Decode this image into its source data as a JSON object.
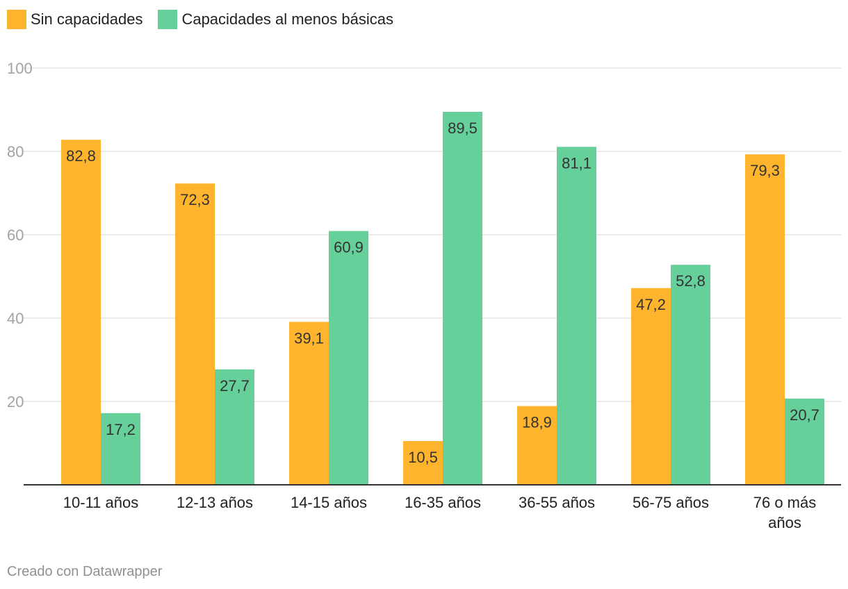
{
  "chart_data": {
    "type": "bar",
    "categories": [
      "10-11 años",
      "12-13 años",
      "14-15 años",
      "16-35 años",
      "36-55 años",
      "56-75 años",
      "76 o más años"
    ],
    "category_lines": [
      [
        "10-11 años"
      ],
      [
        "12-13 años"
      ],
      [
        "14-15 años"
      ],
      [
        "16-35 años"
      ],
      [
        "36-55 años"
      ],
      [
        "56-75 años"
      ],
      [
        "76 o más",
        "años"
      ]
    ],
    "series": [
      {
        "name": "Sin capacidades",
        "color": "#FFB42D",
        "values": [
          82.8,
          72.3,
          39.1,
          10.5,
          18.9,
          47.2,
          79.3
        ],
        "labels": [
          "82,8",
          "72,3",
          "39,1",
          "10,5",
          "18,9",
          "47,2",
          "79,3"
        ]
      },
      {
        "name": "Capacidades al menos básicas",
        "color": "#66D09B",
        "values": [
          17.2,
          27.7,
          60.9,
          89.5,
          81.1,
          52.8,
          20.7
        ],
        "labels": [
          "17,2",
          "27,7",
          "60,9",
          "89,5",
          "81,1",
          "52,8",
          "20,7"
        ]
      }
    ],
    "yticks": [
      20,
      40,
      60,
      80,
      100
    ],
    "ylim": [
      0,
      100
    ],
    "legend_position": "top-left",
    "grid": true
  },
  "legend": {
    "series0_label": "Sin capacidades",
    "series1_label": "Capacidades al menos básicas"
  },
  "footer": {
    "credit": "Creado con Datawrapper"
  }
}
